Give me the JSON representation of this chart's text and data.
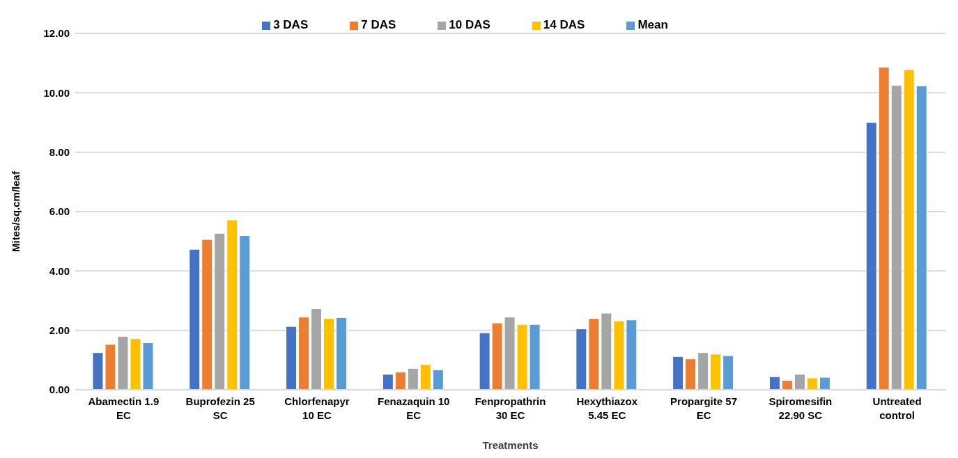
{
  "chart_data": {
    "type": "bar",
    "xlabel": "Treatments",
    "ylabel": "Mites/sq.cm/leaf",
    "categories": [
      "Abamectin 1.9 EC",
      "Buprofezin 25 SC",
      "Chlorfenapyr 10 EC",
      "Fenazaquin 10 EC",
      "Fenpropathrin 30 EC",
      "Hexythiazox 5.45 EC",
      "Propargite 57 EC",
      "Spiromesifin 22.90 SC",
      "Untreated control"
    ],
    "series": [
      {
        "name": "3 DAS",
        "color": "#4472c4",
        "values": [
          1.25,
          4.73,
          2.13,
          0.52,
          1.92,
          2.05,
          1.12,
          0.44,
          9.0
        ]
      },
      {
        "name": "7 DAS",
        "color": "#ed7d31",
        "values": [
          1.53,
          5.06,
          2.45,
          0.6,
          2.25,
          2.4,
          1.04,
          0.32,
          10.86
        ]
      },
      {
        "name": "10 DAS",
        "color": "#a5a5a5",
        "values": [
          1.8,
          5.27,
          2.73,
          0.72,
          2.45,
          2.58,
          1.25,
          0.52,
          10.25
        ]
      },
      {
        "name": "14 DAS",
        "color": "#ffc000",
        "values": [
          1.72,
          5.72,
          2.4,
          0.85,
          2.2,
          2.32,
          1.2,
          0.4,
          10.78
        ]
      },
      {
        "name": "Mean",
        "color": "#5b9bd5",
        "values": [
          1.58,
          5.19,
          2.43,
          0.67,
          2.2,
          2.35,
          1.15,
          0.42,
          10.23
        ]
      }
    ],
    "ylim": [
      0,
      12
    ],
    "yticks": [
      {
        "value": 0,
        "label": "0.00"
      },
      {
        "value": 2,
        "label": "2.00"
      },
      {
        "value": 4,
        "label": "4.00"
      },
      {
        "value": 6,
        "label": "6.00"
      },
      {
        "value": 8,
        "label": "8.00"
      },
      {
        "value": 10,
        "label": "10.00"
      },
      {
        "value": 12,
        "label": "12.00"
      }
    ],
    "grid": "y",
    "legend": "top"
  }
}
